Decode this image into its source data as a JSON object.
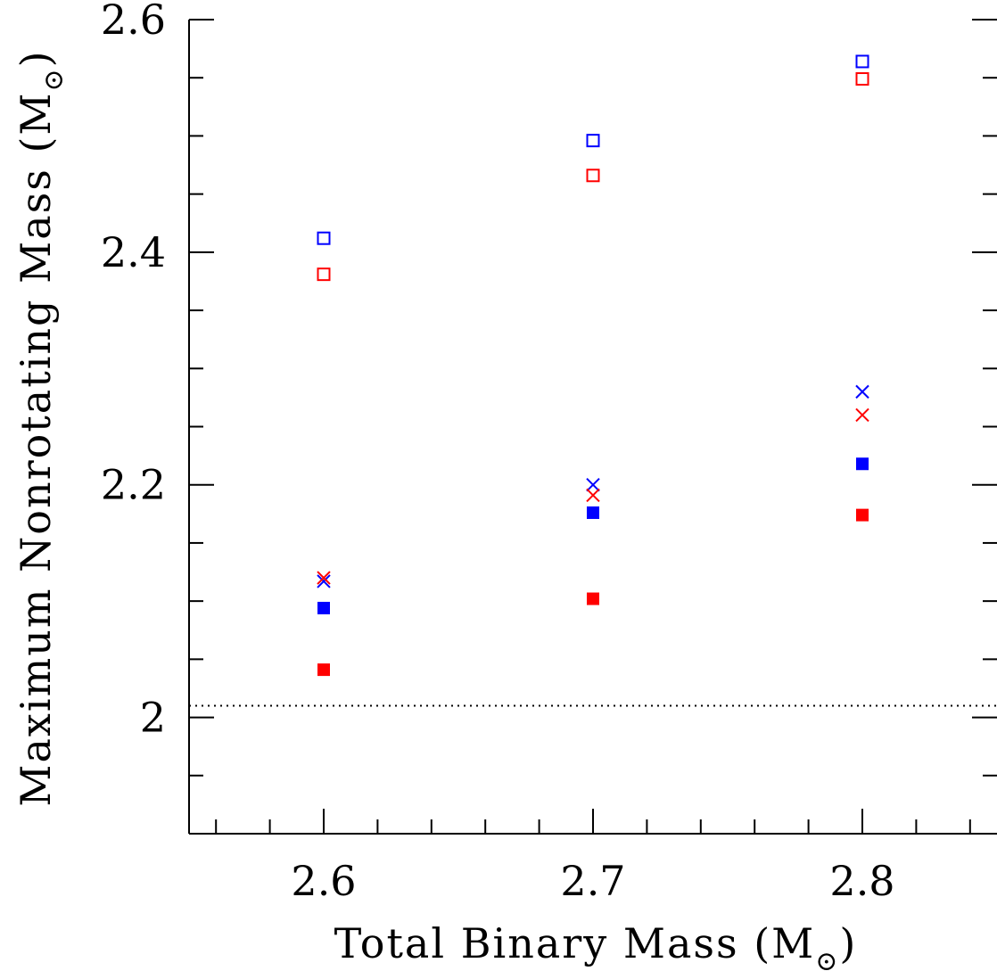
{
  "chart_data": {
    "type": "scatter",
    "xlabel": "Total Binary Mass (M☉)",
    "ylabel": "Maximum Nonrotating Mass (M☉)",
    "xlabel_main": "Total Binary Mass (M",
    "xlabel_sub": "⊙",
    "xlabel_close": ")",
    "ylabel_main": "Maximum Nonrotating Mass (M",
    "ylabel_sub": "⊙",
    "ylabel_close": ")",
    "xlim": [
      2.55,
      2.85
    ],
    "ylim": [
      1.9,
      2.6
    ],
    "x_ticks_major": [
      2.6,
      2.7,
      2.8
    ],
    "x_tick_labels": [
      "2.6",
      "2.7",
      "2.8"
    ],
    "x_ticks_minor": [
      2.56,
      2.58,
      2.62,
      2.64,
      2.66,
      2.68,
      2.72,
      2.74,
      2.76,
      2.78,
      2.82,
      2.84
    ],
    "y_ticks_major": [
      2.0,
      2.2,
      2.4,
      2.6
    ],
    "y_tick_labels": [
      "2",
      "2.2",
      "2.4",
      "2.6"
    ],
    "y_ticks_minor": [
      1.95,
      2.05,
      2.1,
      2.15,
      2.25,
      2.3,
      2.35,
      2.45,
      2.5,
      2.55
    ],
    "reference_line": {
      "y": 2.01,
      "style": "dotted"
    },
    "grid": false,
    "legend": "none",
    "series": [
      {
        "marker": "open-square",
        "color": "#0000ff",
        "x": [
          2.6,
          2.7,
          2.8
        ],
        "y": [
          2.412,
          2.496,
          2.564
        ]
      },
      {
        "marker": "open-square",
        "color": "#ff0000",
        "x": [
          2.6,
          2.7,
          2.8
        ],
        "y": [
          2.381,
          2.466,
          2.549
        ]
      },
      {
        "marker": "cross",
        "color": "#0000ff",
        "x": [
          2.6,
          2.7,
          2.8
        ],
        "y": [
          2.117,
          2.2,
          2.28
        ]
      },
      {
        "marker": "cross",
        "color": "#ff0000",
        "x": [
          2.6,
          2.7,
          2.8
        ],
        "y": [
          2.12,
          2.191,
          2.26
        ]
      },
      {
        "marker": "filled-square",
        "color": "#0000ff",
        "x": [
          2.6,
          2.7,
          2.8
        ],
        "y": [
          2.094,
          2.176,
          2.218
        ]
      },
      {
        "marker": "filled-square",
        "color": "#ff0000",
        "x": [
          2.6,
          2.7,
          2.8
        ],
        "y": [
          2.041,
          2.102,
          2.174
        ]
      }
    ]
  }
}
